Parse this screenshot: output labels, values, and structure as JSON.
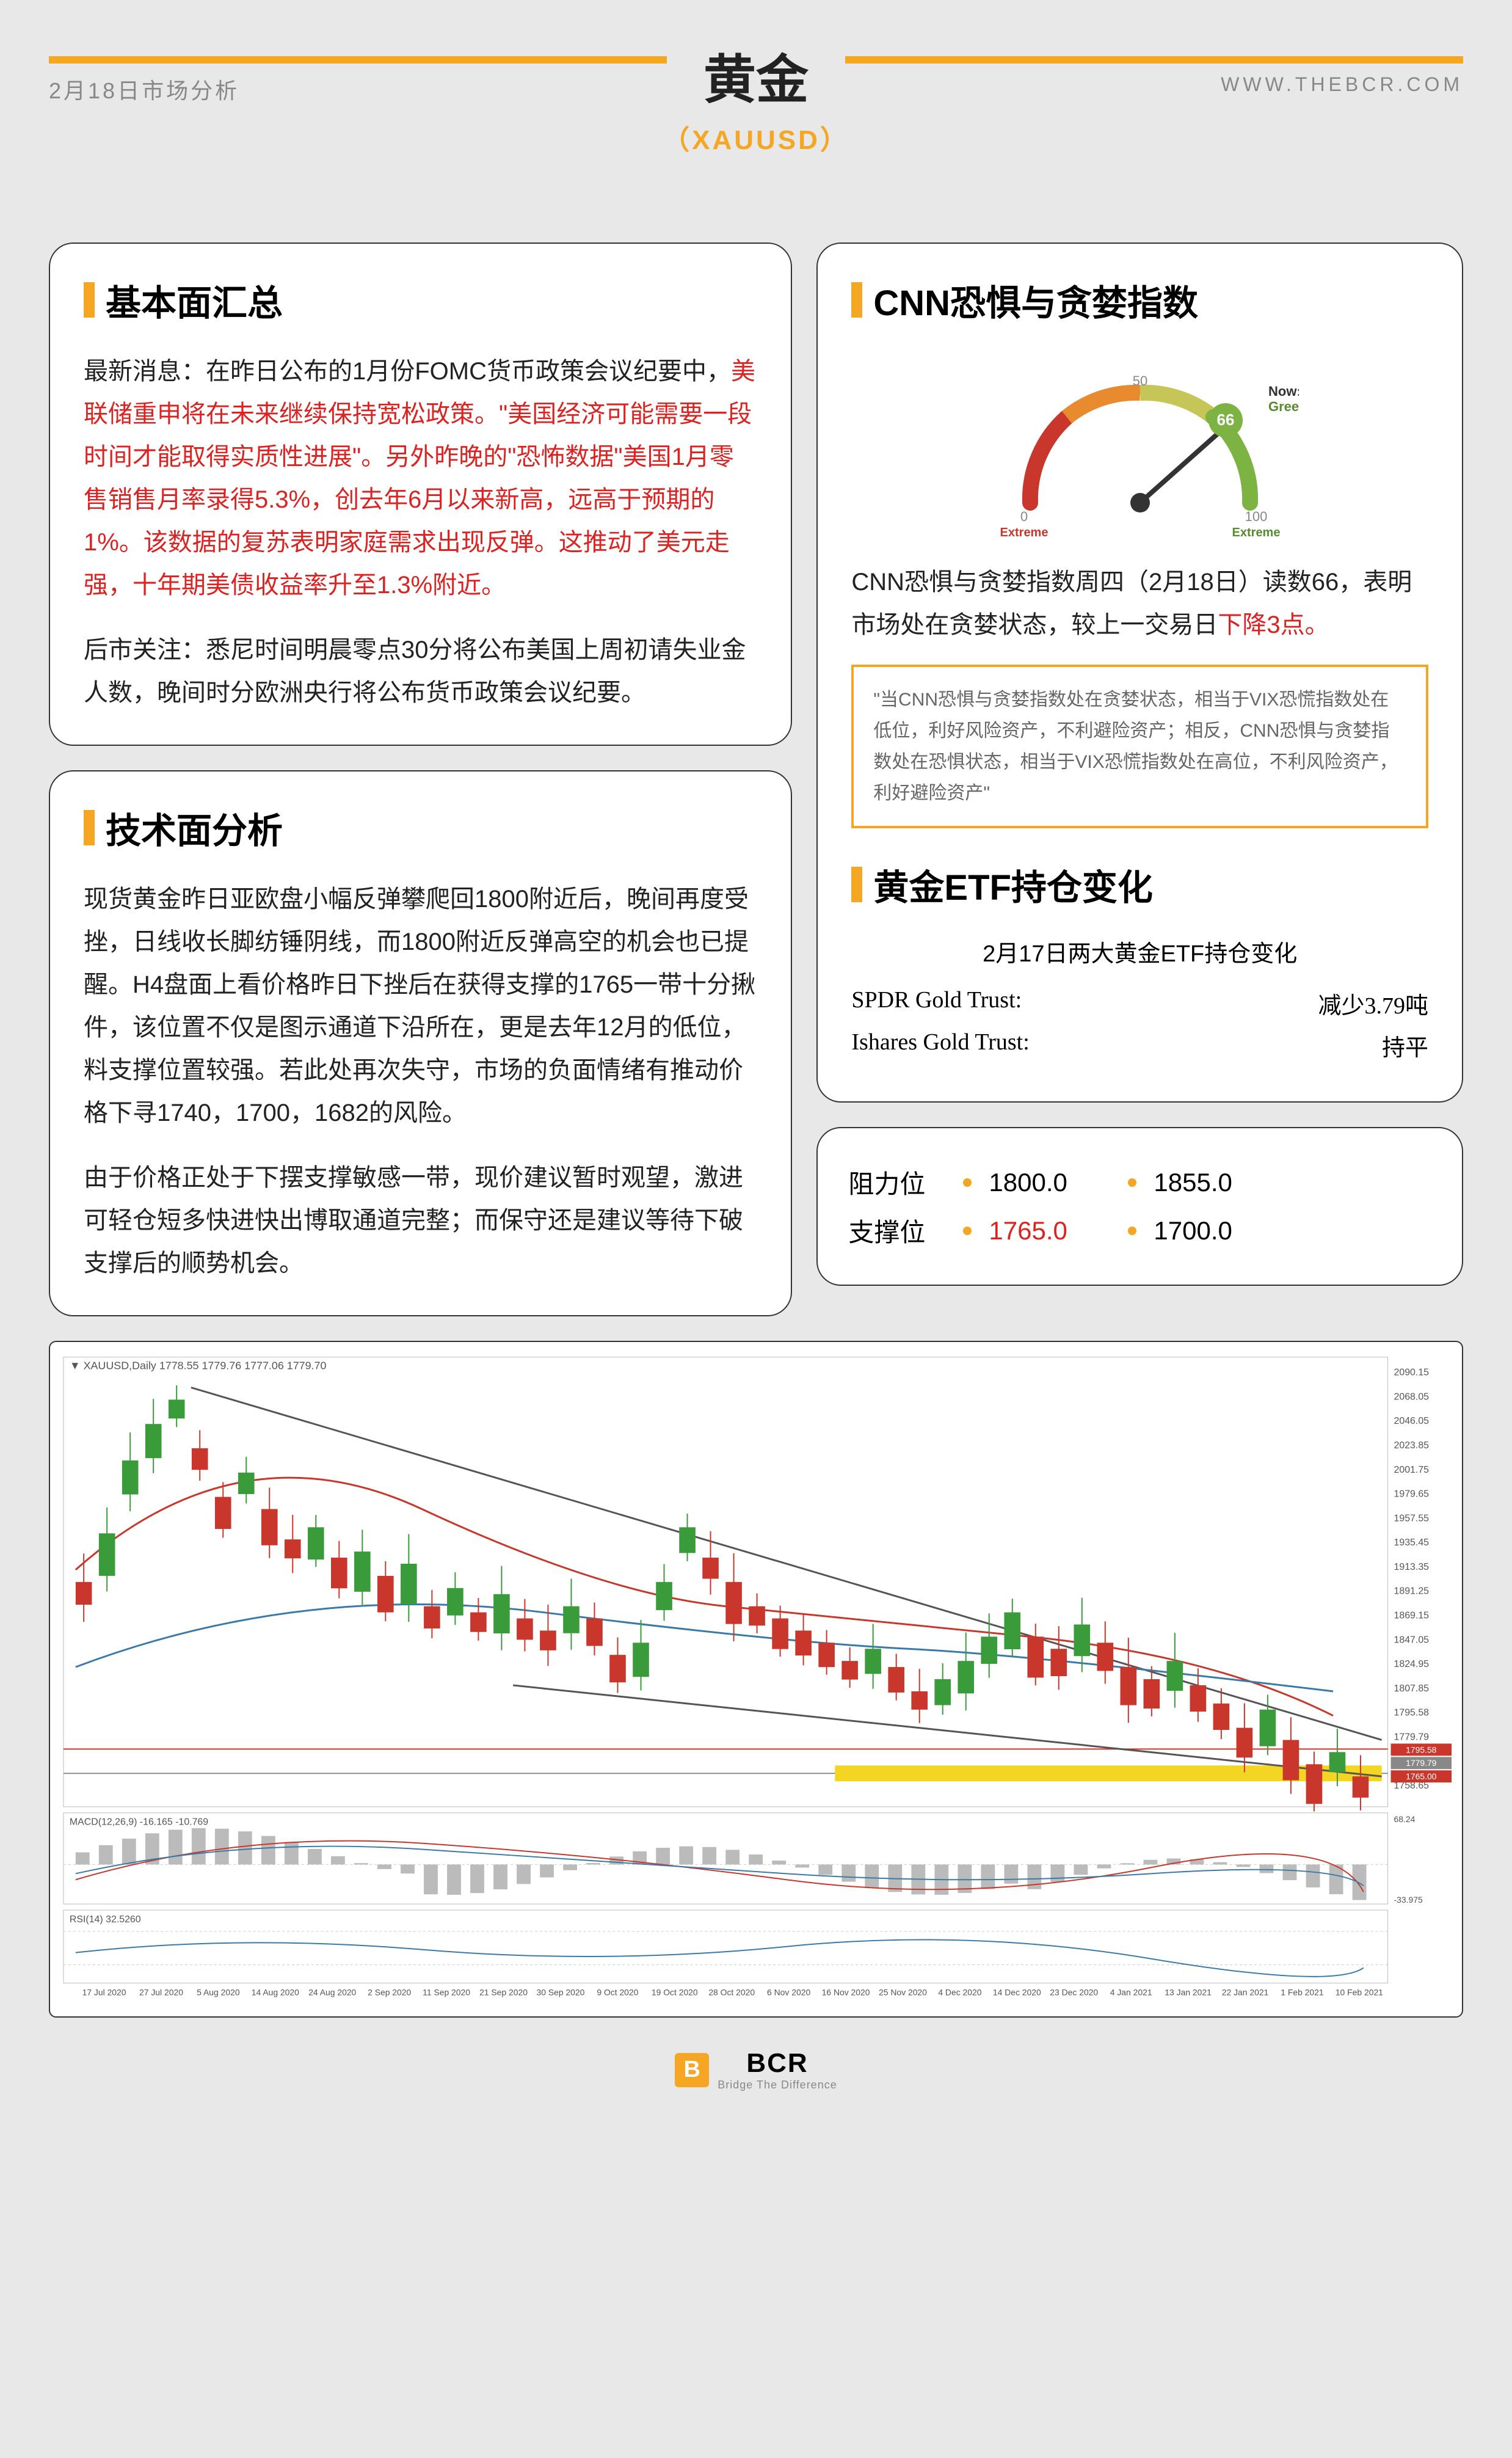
{
  "header": {
    "date_label": "2月18日市场分析",
    "title": "黄金",
    "subtitle": "（XAUUSD）",
    "site": "WWW.THEBCR.COM"
  },
  "fundamentals": {
    "title": "基本面汇总",
    "p1_a": "最新消息：在昨日公布的1月份FOMC货币政策会议纪要中，",
    "p1_b_red": "美联储重申将在未来继续保持宽松政策。\"美国经济可能需要一段时间才能取得实质性进展\"。另外昨晚的\"恐怖数据\"美国1月零售销售月率录得5.3%，创去年6月以来新高，远高于预期的1%。该数据的复苏表明家庭需求出现反弹。这推动了美元走强，十年期美债收益率升至1.3%附近。",
    "p2": "后市关注：悉尼时间明晨零点30分将公布美国上周初请失业金人数，晚间时分欧洲央行将公布货币政策会议纪要。"
  },
  "technical": {
    "title": "技术面分析",
    "p1": "现货黄金昨日亚欧盘小幅反弹攀爬回1800附近后，晚间再度受挫，日线收长脚纺锤阴线，而1800附近反弹高空的机会也已提醒。H4盘面上看价格昨日下挫后在获得支撑的1765一带十分揪件，该位置不仅是图示通道下沿所在，更是去年12月的低位，料支撑位置较强。若此处再次失守，市场的负面情绪有推动价格下寻1740，1700，1682的风险。",
    "p2": "由于价格正处于下摆支撑敏感一带，现价建议暂时观望，激进可轻仓短多快进快出博取通道完整；而保守还是建议等待下破支撑后的顺势机会。"
  },
  "fear_greed": {
    "title": "CNN恐惧与贪婪指数",
    "gauge": {
      "value": 66,
      "now_label": "Now:",
      "now_status": "Greed",
      "min_label": "0",
      "mid_label": "50",
      "max_label": "100",
      "left_label": "Extreme\nFear",
      "right_label": "Extreme\nGreed",
      "left_color": "#c9372c",
      "mid_color": "#f5a623",
      "right_color": "#7cb342",
      "needle_angle": 58
    },
    "desc_a": "CNN恐惧与贪婪指数周四（2月18日）读数66，表明市场处在贪婪状态，较上一交易日",
    "desc_b_red": "下降3点。",
    "note": "\"当CNN恐惧与贪婪指数处在贪婪状态，相当于VIX恐慌指数处在低位，利好风险资产，不利避险资产；相反，CNN恐惧与贪婪指数处在恐惧状态，相当于VIX恐慌指数处在高位，不利风险资产，利好避险资产\""
  },
  "etf": {
    "title": "黄金ETF持仓变化",
    "subtitle": "2月17日两大黄金ETF持仓变化",
    "rows": [
      {
        "name": "SPDR Gold Trust:",
        "value": "减少3.79吨"
      },
      {
        "name": "Ishares Gold Trust:",
        "value": "持平"
      }
    ]
  },
  "levels": {
    "resistance_label": "阻力位",
    "support_label": "支撑位",
    "resistance": [
      "1800.0",
      "1855.0"
    ],
    "support": [
      "1765.0",
      "1700.0"
    ],
    "highlight_index": 0
  },
  "chart": {
    "symbol_label": "▼ XAUUSD,Daily 1778.55 1779.76 1777.06 1779.70",
    "macd_label": "MACD(12,26,9) -16.165 -10.769",
    "rsi_label": "RSI(14) 32.5260",
    "y_labels": [
      "2090.15",
      "2068.05",
      "2046.05",
      "2023.85",
      "2001.75",
      "1979.65",
      "1957.55",
      "1935.45",
      "1913.35",
      "1891.25",
      "1869.15",
      "1847.05",
      "1824.95",
      "1807.85",
      "1795.58",
      "1779.79",
      "1765.00",
      "1758.65"
    ],
    "macd_y": [
      "68.24",
      "-33.975"
    ],
    "x_labels": [
      "17 Jul 2020",
      "27 Jul 2020",
      "5 Aug 2020",
      "14 Aug 2020",
      "24 Aug 2020",
      "2 Sep 2020",
      "11 Sep 2020",
      "21 Sep 2020",
      "30 Sep 2020",
      "9 Oct 2020",
      "19 Oct 2020",
      "28 Oct 2020",
      "6 Nov 2020",
      "16 Nov 2020",
      "25 Nov 2020",
      "4 Dec 2020",
      "14 Dec 2020",
      "23 Dec 2020",
      "4 Jan 2021",
      "13 Jan 2021",
      "22 Jan 2021",
      "1 Feb 2021",
      "10 Feb 2021"
    ],
    "colors": {
      "bg": "#ffffff",
      "grid": "#e0e0e0",
      "candle_up": "#3a9b3a",
      "candle_down": "#c9372c",
      "ma1": "#c9372c",
      "ma2": "#3a7aa8",
      "trend": "#555555",
      "support": "#c9372c",
      "highlight": "#f5d523"
    }
  },
  "footer": {
    "icon": "B",
    "text": "BCR",
    "tag": "Bridge The Difference"
  }
}
